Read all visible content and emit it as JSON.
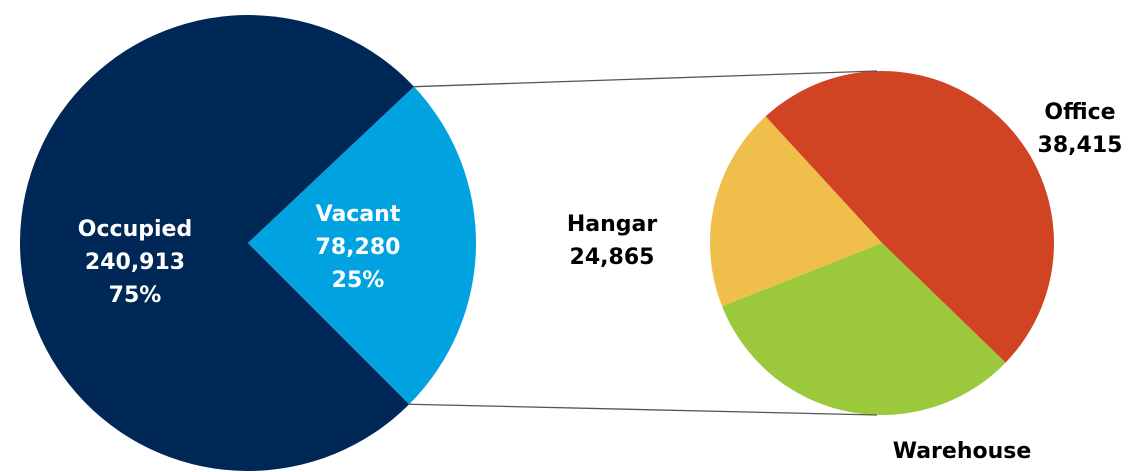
{
  "chart_data": [
    {
      "type": "pie",
      "categories": [
        "Occupied",
        "Vacant"
      ],
      "values": [
        240913,
        78280
      ],
      "value_labels": [
        "240,913",
        "78,280"
      ],
      "percent_labels": [
        "75%",
        "25%"
      ],
      "colors": [
        "#002856",
        "#00a3e0"
      ]
    },
    {
      "type": "pie",
      "categories": [
        "Office",
        "Hangar",
        "Warehouse"
      ],
      "values": [
        38415,
        24865,
        15000
      ],
      "value_labels": [
        "38,415",
        "24,865",
        null
      ],
      "colors": [
        "#d04424",
        "#9cc83c",
        "#f0be4a"
      ]
    }
  ]
}
